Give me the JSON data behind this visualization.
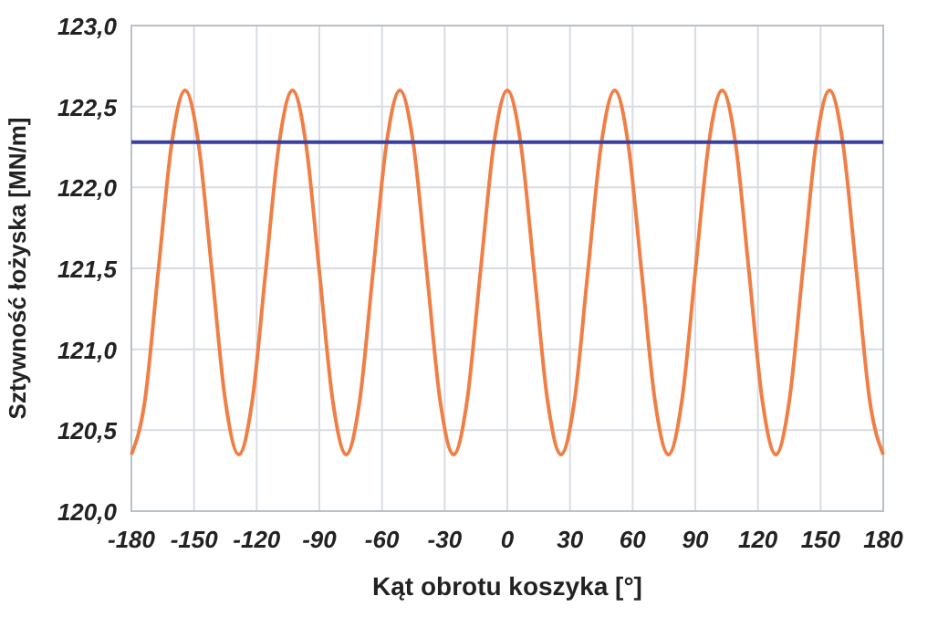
{
  "chart_data": {
    "type": "line",
    "xlabel": "Kąt obrotu koszyka [°]",
    "ylabel": "Sztywność łożyska [MN/m]",
    "xlim": [
      -180,
      180
    ],
    "xticks": [
      -180,
      -150,
      -120,
      -90,
      -60,
      -30,
      0,
      30,
      60,
      90,
      120,
      150,
      180
    ],
    "ylim": [
      120,
      123
    ],
    "yticks": [
      {
        "value": 120,
        "label": "120,0"
      },
      {
        "value": 120.5,
        "label": "120,5"
      },
      {
        "value": 121,
        "label": "121,0"
      },
      {
        "value": 121.5,
        "label": "121,5"
      },
      {
        "value": 122,
        "label": "122,0"
      },
      {
        "value": 122.5,
        "label": "122,5"
      },
      {
        "value": 123,
        "label": "123,0"
      }
    ],
    "grid": true,
    "marker": "none",
    "line_style": "solid",
    "series": [
      {
        "color": "#f07f45",
        "x": [
          -180,
          -173.57,
          -167.14,
          -160.71,
          -154.29,
          -147.86,
          -141.43,
          -135,
          -128.57,
          -122.14,
          -115.71,
          -109.29,
          -102.86,
          -96.43,
          -90,
          -83.57,
          -77.14,
          -70.71,
          -64.29,
          -57.86,
          -51.43,
          -45,
          -38.57,
          -32.14,
          -25.71,
          -19.29,
          -12.86,
          -6.43,
          0,
          6.43,
          12.86,
          19.29,
          25.71,
          32.14,
          38.57,
          45,
          51.43,
          57.86,
          64.29,
          70.71,
          77.14,
          83.57,
          90,
          96.43,
          102.86,
          109.29,
          115.71,
          122.14,
          128.57,
          135,
          141.43,
          147.86,
          154.29,
          160.71,
          167.14,
          173.57,
          180
        ],
        "values": [
          120.35,
          120.68,
          121.48,
          122.27,
          122.6,
          122.27,
          121.48,
          120.68,
          120.35,
          120.68,
          121.48,
          122.27,
          122.6,
          122.27,
          121.48,
          120.68,
          120.35,
          120.68,
          121.48,
          122.27,
          122.6,
          122.27,
          121.48,
          120.68,
          120.35,
          120.68,
          121.48,
          122.27,
          122.6,
          122.27,
          121.48,
          120.68,
          120.35,
          120.68,
          121.48,
          122.27,
          122.6,
          122.27,
          121.48,
          120.68,
          120.35,
          120.68,
          121.48,
          122.27,
          122.6,
          122.27,
          121.48,
          120.68,
          120.35,
          120.68,
          121.48,
          122.27,
          122.6,
          122.27,
          121.48,
          120.68,
          120.35
        ]
      },
      {
        "color": "#3b3fa0",
        "x": [
          -180,
          180
        ],
        "values": [
          122.28,
          122.28
        ]
      }
    ]
  }
}
